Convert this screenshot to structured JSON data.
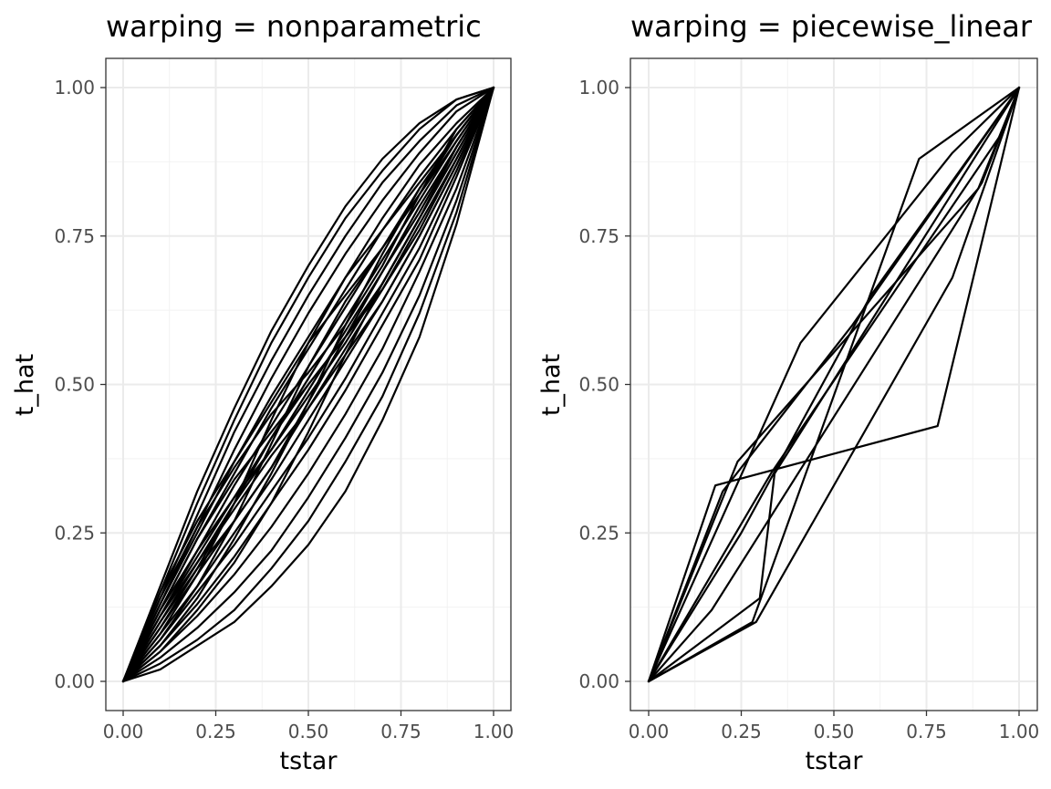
{
  "chart_data": [
    {
      "type": "line",
      "title": "warping = nonparametric",
      "xlabel": "tstar",
      "ylabel": "t_hat",
      "xlim": [
        0,
        1
      ],
      "ylim": [
        0,
        1
      ],
      "xticks": [
        "0.00",
        "0.25",
        "0.50",
        "0.75",
        "1.00"
      ],
      "yticks": [
        "0.00",
        "0.25",
        "0.50",
        "0.75",
        "1.00"
      ],
      "grid": true,
      "legend": "none",
      "line_color": "#000000",
      "curves": [
        {
          "x": [
            0,
            0.1,
            0.2,
            0.3,
            0.4,
            0.5,
            0.6,
            0.7,
            0.8,
            0.9,
            1
          ],
          "y": [
            0,
            0.16,
            0.32,
            0.46,
            0.59,
            0.7,
            0.8,
            0.88,
            0.94,
            0.98,
            1
          ]
        },
        {
          "x": [
            0,
            0.1,
            0.2,
            0.3,
            0.4,
            0.5,
            0.6,
            0.7,
            0.8,
            0.9,
            1
          ],
          "y": [
            0,
            0.15,
            0.3,
            0.44,
            0.57,
            0.68,
            0.78,
            0.86,
            0.93,
            0.98,
            1
          ]
        },
        {
          "x": [
            0,
            0.1,
            0.2,
            0.3,
            0.4,
            0.5,
            0.6,
            0.7,
            0.8,
            0.9,
            1
          ],
          "y": [
            0,
            0.14,
            0.28,
            0.42,
            0.54,
            0.65,
            0.75,
            0.84,
            0.91,
            0.97,
            1
          ]
        },
        {
          "x": [
            0,
            0.1,
            0.2,
            0.3,
            0.4,
            0.5,
            0.6,
            0.7,
            0.8,
            0.9,
            1
          ],
          "y": [
            0,
            0.13,
            0.26,
            0.39,
            0.51,
            0.62,
            0.72,
            0.81,
            0.89,
            0.96,
            1
          ]
        },
        {
          "x": [
            0,
            0.1,
            0.2,
            0.3,
            0.4,
            0.5,
            0.6,
            0.7,
            0.8,
            0.9,
            1
          ],
          "y": [
            0,
            0.13,
            0.25,
            0.37,
            0.48,
            0.58,
            0.68,
            0.78,
            0.87,
            0.94,
            1
          ]
        },
        {
          "x": [
            0,
            0.1,
            0.2,
            0.3,
            0.4,
            0.5,
            0.6,
            0.7,
            0.8,
            0.9,
            1
          ],
          "y": [
            0,
            0.12,
            0.24,
            0.35,
            0.46,
            0.56,
            0.66,
            0.76,
            0.85,
            0.93,
            1
          ]
        },
        {
          "x": [
            0,
            0.1,
            0.2,
            0.3,
            0.4,
            0.5,
            0.6,
            0.7,
            0.8,
            0.9,
            1
          ],
          "y": [
            0,
            0.11,
            0.22,
            0.33,
            0.43,
            0.53,
            0.63,
            0.73,
            0.83,
            0.92,
            1
          ]
        },
        {
          "x": [
            0,
            0.1,
            0.2,
            0.3,
            0.4,
            0.5,
            0.6,
            0.7,
            0.8,
            0.9,
            1
          ],
          "y": [
            0,
            0.11,
            0.21,
            0.31,
            0.41,
            0.51,
            0.61,
            0.71,
            0.81,
            0.91,
            1
          ]
        },
        {
          "x": [
            0,
            0.1,
            0.2,
            0.3,
            0.4,
            0.5,
            0.6,
            0.7,
            0.8,
            0.9,
            1
          ],
          "y": [
            0,
            0.1,
            0.2,
            0.3,
            0.39,
            0.49,
            0.59,
            0.69,
            0.79,
            0.9,
            1
          ]
        },
        {
          "x": [
            0,
            0.1,
            0.2,
            0.3,
            0.4,
            0.5,
            0.6,
            0.7,
            0.8,
            0.9,
            1
          ],
          "y": [
            0,
            0.09,
            0.18,
            0.27,
            0.36,
            0.46,
            0.56,
            0.66,
            0.77,
            0.88,
            1
          ]
        },
        {
          "x": [
            0,
            0.1,
            0.2,
            0.3,
            0.4,
            0.5,
            0.6,
            0.7,
            0.8,
            0.9,
            1
          ],
          "y": [
            0,
            0.08,
            0.16,
            0.25,
            0.34,
            0.44,
            0.54,
            0.64,
            0.75,
            0.87,
            1
          ]
        },
        {
          "x": [
            0,
            0.1,
            0.2,
            0.3,
            0.4,
            0.5,
            0.6,
            0.7,
            0.8,
            0.9,
            1
          ],
          "y": [
            0,
            0.07,
            0.15,
            0.23,
            0.32,
            0.41,
            0.51,
            0.62,
            0.73,
            0.86,
            1
          ]
        },
        {
          "x": [
            0,
            0.1,
            0.2,
            0.3,
            0.4,
            0.5,
            0.6,
            0.7,
            0.8,
            0.9,
            1
          ],
          "y": [
            0,
            0.06,
            0.13,
            0.21,
            0.3,
            0.39,
            0.49,
            0.6,
            0.71,
            0.85,
            1
          ]
        },
        {
          "x": [
            0,
            0.1,
            0.2,
            0.3,
            0.4,
            0.5,
            0.6,
            0.7,
            0.8,
            0.9,
            1
          ],
          "y": [
            0,
            0.05,
            0.11,
            0.18,
            0.26,
            0.35,
            0.45,
            0.56,
            0.69,
            0.83,
            1
          ]
        },
        {
          "x": [
            0,
            0.1,
            0.2,
            0.3,
            0.4,
            0.5,
            0.6,
            0.7,
            0.8,
            0.9,
            1
          ],
          "y": [
            0,
            0.04,
            0.09,
            0.15,
            0.22,
            0.31,
            0.41,
            0.52,
            0.65,
            0.81,
            1
          ]
        },
        {
          "x": [
            0,
            0.1,
            0.2,
            0.3,
            0.4,
            0.5,
            0.6,
            0.7,
            0.8,
            0.9,
            1
          ],
          "y": [
            0,
            0.03,
            0.07,
            0.12,
            0.19,
            0.27,
            0.37,
            0.48,
            0.62,
            0.79,
            1
          ]
        },
        {
          "x": [
            0,
            0.1,
            0.2,
            0.3,
            0.4,
            0.5,
            0.6,
            0.7,
            0.8,
            0.9,
            1
          ],
          "y": [
            0,
            0.02,
            0.06,
            0.1,
            0.16,
            0.23,
            0.32,
            0.44,
            0.58,
            0.77,
            1
          ]
        },
        {
          "x": [
            0,
            0.1,
            0.2,
            0.3,
            0.4,
            0.5,
            0.6,
            0.7,
            0.8,
            0.9,
            1
          ],
          "y": [
            0,
            0.14,
            0.26,
            0.36,
            0.45,
            0.52,
            0.6,
            0.7,
            0.82,
            0.93,
            1
          ]
        },
        {
          "x": [
            0,
            0.1,
            0.2,
            0.3,
            0.4,
            0.5,
            0.6,
            0.7,
            0.8,
            0.9,
            1
          ],
          "y": [
            0,
            0.12,
            0.24,
            0.34,
            0.42,
            0.5,
            0.58,
            0.67,
            0.78,
            0.9,
            1
          ]
        },
        {
          "x": [
            0,
            0.1,
            0.2,
            0.3,
            0.4,
            0.5,
            0.6,
            0.7,
            0.8,
            0.9,
            1
          ],
          "y": [
            0,
            0.08,
            0.18,
            0.3,
            0.44,
            0.57,
            0.68,
            0.76,
            0.84,
            0.92,
            1
          ]
        },
        {
          "x": [
            0,
            0.1,
            0.2,
            0.3,
            0.4,
            0.5,
            0.6,
            0.7,
            0.8,
            0.9,
            1
          ],
          "y": [
            0,
            0.07,
            0.16,
            0.27,
            0.4,
            0.53,
            0.64,
            0.73,
            0.82,
            0.91,
            1
          ]
        },
        {
          "x": [
            0,
            0.1,
            0.2,
            0.3,
            0.4,
            0.5,
            0.6,
            0.7,
            0.8,
            0.9,
            1
          ],
          "y": [
            0,
            0.1,
            0.19,
            0.27,
            0.36,
            0.47,
            0.6,
            0.72,
            0.83,
            0.92,
            1
          ]
        },
        {
          "x": [
            0,
            0.1,
            0.2,
            0.3,
            0.4,
            0.5,
            0.6,
            0.7,
            0.8,
            0.9,
            1
          ],
          "y": [
            0,
            0.09,
            0.19,
            0.3,
            0.41,
            0.5,
            0.58,
            0.66,
            0.76,
            0.88,
            1
          ]
        },
        {
          "x": [
            0,
            0.1,
            0.2,
            0.3,
            0.4,
            0.5,
            0.6,
            0.7,
            0.8,
            0.9,
            1
          ],
          "y": [
            0,
            0.12,
            0.22,
            0.31,
            0.39,
            0.48,
            0.57,
            0.67,
            0.78,
            0.89,
            1
          ]
        },
        {
          "x": [
            0,
            0.1,
            0.2,
            0.3,
            0.4,
            0.5,
            0.6,
            0.7,
            0.8,
            0.9,
            1
          ],
          "y": [
            0,
            0.06,
            0.14,
            0.24,
            0.35,
            0.47,
            0.58,
            0.69,
            0.8,
            0.9,
            1
          ]
        },
        {
          "x": [
            0,
            0.1,
            0.2,
            0.3,
            0.4,
            0.5,
            0.6,
            0.7,
            0.8,
            0.9,
            1
          ],
          "y": [
            0,
            0.15,
            0.27,
            0.37,
            0.47,
            0.57,
            0.65,
            0.73,
            0.82,
            0.92,
            1
          ]
        },
        {
          "x": [
            0,
            0.1,
            0.2,
            0.3,
            0.4,
            0.5,
            0.6,
            0.7,
            0.8,
            0.9,
            1
          ],
          "y": [
            0,
            0.05,
            0.12,
            0.2,
            0.3,
            0.42,
            0.55,
            0.67,
            0.78,
            0.89,
            1
          ]
        },
        {
          "x": [
            0,
            0.1,
            0.2,
            0.3,
            0.4,
            0.5,
            0.6,
            0.7,
            0.8,
            0.9,
            1
          ],
          "y": [
            0,
            0.11,
            0.2,
            0.29,
            0.38,
            0.46,
            0.55,
            0.64,
            0.75,
            0.87,
            1
          ]
        }
      ]
    },
    {
      "type": "line",
      "title": "warping = piecewise_linear",
      "xlabel": "tstar",
      "ylabel": "t_hat",
      "xlim": [
        0,
        1
      ],
      "ylim": [
        0,
        1
      ],
      "xticks": [
        "0.00",
        "0.25",
        "0.50",
        "0.75",
        "1.00"
      ],
      "yticks": [
        "0.00",
        "0.25",
        "0.50",
        "0.75",
        "1.00"
      ],
      "grid": true,
      "legend": "none",
      "line_color": "#000000",
      "curves": [
        {
          "x": [
            0,
            0.18,
            0.78,
            1
          ],
          "y": [
            0,
            0.33,
            0.43,
            1
          ]
        },
        {
          "x": [
            0,
            0.41,
            0.82,
            1
          ],
          "y": [
            0,
            0.57,
            0.89,
            1
          ]
        },
        {
          "x": [
            0,
            0.24,
            0.89,
            1
          ],
          "y": [
            0,
            0.37,
            0.83,
            1
          ]
        },
        {
          "x": [
            0,
            0.28,
            0.73,
            1
          ],
          "y": [
            0,
            0.1,
            0.88,
            1
          ]
        },
        {
          "x": [
            0,
            0.3,
            0.34,
            1
          ],
          "y": [
            0,
            0.14,
            0.35,
            1
          ]
        },
        {
          "x": [
            0,
            0.29,
            0.82,
            1
          ],
          "y": [
            0,
            0.1,
            0.68,
            1
          ]
        },
        {
          "x": [
            0,
            0.2,
            0.55,
            1
          ],
          "y": [
            0,
            0.32,
            0.6,
            1
          ]
        },
        {
          "x": [
            0,
            0.17,
            0.9,
            1
          ],
          "y": [
            0,
            0.12,
            0.84,
            1
          ]
        },
        {
          "x": [
            0,
            0.25,
            0.6,
            1
          ],
          "y": [
            0,
            0.25,
            0.65,
            1
          ]
        },
        {
          "x": [
            0,
            0.33,
            0.95,
            1
          ],
          "y": [
            0,
            0.35,
            0.92,
            1
          ]
        }
      ]
    }
  ]
}
